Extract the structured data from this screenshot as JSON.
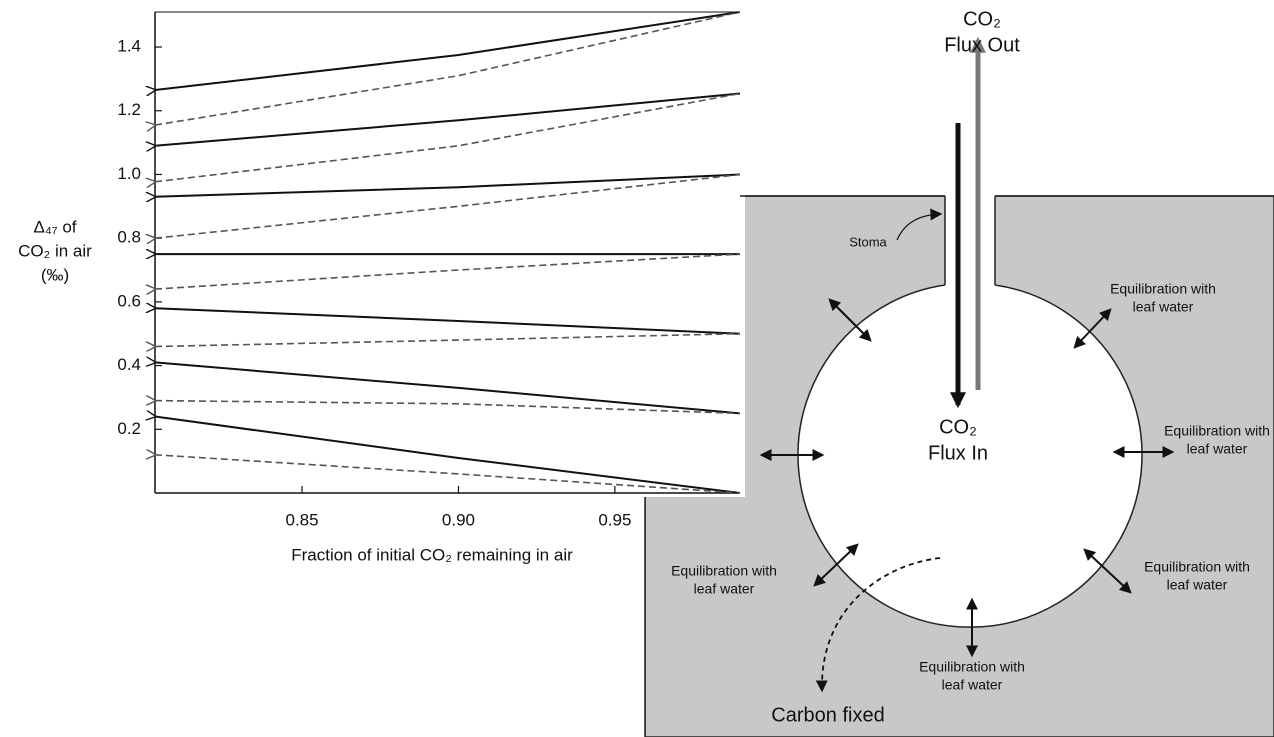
{
  "chart_data": {
    "type": "line",
    "x_label": "Fraction of initial CO₂ remaining in air",
    "y_label": [
      "Δ₄₇ of",
      "CO₂ in air",
      "(‰)"
    ],
    "x": [
      0.803,
      0.9,
      0.99
    ],
    "series": [
      {
        "style": "solid",
        "color": "#111111",
        "values": [
          1.265,
          1.375,
          1.51
        ]
      },
      {
        "style": "dashed",
        "color": "#555555",
        "values": [
          1.155,
          1.31,
          1.51
        ]
      },
      {
        "style": "solid",
        "color": "#111111",
        "values": [
          1.09,
          1.17,
          1.254
        ]
      },
      {
        "style": "dashed",
        "color": "#555555",
        "values": [
          0.977,
          1.09,
          1.254
        ]
      },
      {
        "style": "solid",
        "color": "#111111",
        "values": [
          0.93,
          0.96,
          1.0
        ]
      },
      {
        "style": "dashed",
        "color": "#555555",
        "values": [
          0.8,
          0.9,
          1.0
        ]
      },
      {
        "style": "solid",
        "color": "#111111",
        "values": [
          0.75,
          0.75,
          0.75
        ]
      },
      {
        "style": "dashed",
        "color": "#555555",
        "values": [
          0.64,
          0.7,
          0.75
        ]
      },
      {
        "style": "solid",
        "color": "#111111",
        "values": [
          0.58,
          0.54,
          0.5
        ]
      },
      {
        "style": "dashed",
        "color": "#555555",
        "values": [
          0.46,
          0.48,
          0.5
        ]
      },
      {
        "style": "solid",
        "color": "#111111",
        "values": [
          0.41,
          0.33,
          0.25
        ]
      },
      {
        "style": "dashed",
        "color": "#555555",
        "values": [
          0.29,
          0.28,
          0.25
        ]
      },
      {
        "style": "solid",
        "color": "#111111",
        "values": [
          0.24,
          0.11,
          0.0
        ]
      },
      {
        "style": "dashed",
        "color": "#555555",
        "values": [
          0.12,
          0.06,
          0.0
        ]
      }
    ],
    "xlim": [
      0.803,
      0.99
    ],
    "ylim": [
      0,
      1.51
    ],
    "xticks": [
      0.85,
      {
        "value": 0.9,
        "label": "0.90"
      },
      0.95
    ],
    "yticks": [
      0.2,
      0.4,
      0.6,
      0.8,
      {
        "value": 1,
        "label": "1.0"
      },
      1.2,
      1.4
    ],
    "grid": false
  },
  "diagram": {
    "flux_out": [
      "CO₂",
      "Flux Out"
    ],
    "flux_in": [
      "CO₂",
      "Flux In"
    ],
    "stoma": "Stoma",
    "equilibration": [
      [
        "Equilibration with",
        "leaf water"
      ],
      [
        "Equilibration with",
        "leaf water"
      ],
      [
        "Equilibration with",
        "leaf water"
      ],
      [
        "Equilibration with",
        "leaf water"
      ],
      [
        "Equilibration with",
        "leaf water"
      ]
    ],
    "carbon_fixed": "Carbon fixed"
  }
}
